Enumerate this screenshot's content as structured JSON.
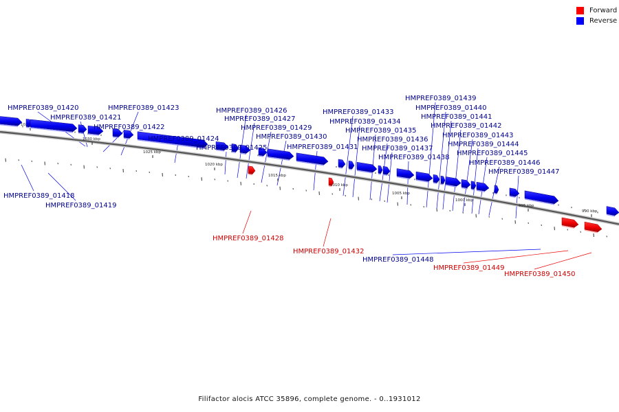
{
  "legend": {
    "forward_label": "Forward",
    "reverse_label": "Reverse",
    "forward_color": "#ff0000",
    "reverse_color": "#0000ff"
  },
  "caption": "Filifactor alocis ATCC 35896, complete genome. - 0..1931012",
  "scale_ticks": [
    "1035 kbp",
    "1030 kbp",
    "1025 kbp",
    "1020 kbp",
    "1015 kbp",
    "1010 kbp",
    "1005 kbp",
    "1000 kbp",
    "995 kbp",
    "990 kbp"
  ],
  "genes": [
    {
      "label": "HMPREF0389_01418",
      "strand": "reverse"
    },
    {
      "label": "HMPREF0389_01419",
      "strand": "reverse"
    },
    {
      "label": "HMPREF0389_01420",
      "strand": "reverse"
    },
    {
      "label": "HMPREF0389_01421",
      "strand": "reverse"
    },
    {
      "label": "HMPREF0389_01422",
      "strand": "reverse"
    },
    {
      "label": "HMPREF0389_01423",
      "strand": "reverse"
    },
    {
      "label": "HMPREF0389_01424",
      "strand": "reverse"
    },
    {
      "label": "HMPREF0389_01425",
      "strand": "reverse"
    },
    {
      "label": "HMPREF0389_01426",
      "strand": "reverse"
    },
    {
      "label": "HMPREF0389_01427",
      "strand": "reverse"
    },
    {
      "label": "HMPREF0389_01428",
      "strand": "forward"
    },
    {
      "label": "HMPREF0389_01429",
      "strand": "reverse"
    },
    {
      "label": "HMPREF0389_01430",
      "strand": "reverse"
    },
    {
      "label": "HMPREF0389_01431",
      "strand": "reverse"
    },
    {
      "label": "HMPREF0389_01432",
      "strand": "forward"
    },
    {
      "label": "HMPREF0389_01433",
      "strand": "reverse"
    },
    {
      "label": "HMPREF0389_01434",
      "strand": "reverse"
    },
    {
      "label": "HMPREF0389_01435",
      "strand": "reverse"
    },
    {
      "label": "HMPREF0389_01436",
      "strand": "reverse"
    },
    {
      "label": "HMPREF0389_01437",
      "strand": "reverse"
    },
    {
      "label": "HMPREF0389_01438",
      "strand": "reverse"
    },
    {
      "label": "HMPREF0389_01439",
      "strand": "reverse"
    },
    {
      "label": "HMPREF0389_01440",
      "strand": "reverse"
    },
    {
      "label": "HMPREF0389_01441",
      "strand": "reverse"
    },
    {
      "label": "HMPREF0389_01442",
      "strand": "reverse"
    },
    {
      "label": "HMPREF0389_01443",
      "strand": "reverse"
    },
    {
      "label": "HMPREF0389_01444",
      "strand": "reverse"
    },
    {
      "label": "HMPREF0389_01445",
      "strand": "reverse"
    },
    {
      "label": "HMPREF0389_01446",
      "strand": "reverse"
    },
    {
      "label": "HMPREF0389_01447",
      "strand": "reverse"
    },
    {
      "label": "HMPREF0389_01448",
      "strand": "reverse"
    },
    {
      "label": "HMPREF0389_01449",
      "strand": "forward"
    },
    {
      "label": "HMPREF0389_01450",
      "strand": "forward"
    }
  ]
}
